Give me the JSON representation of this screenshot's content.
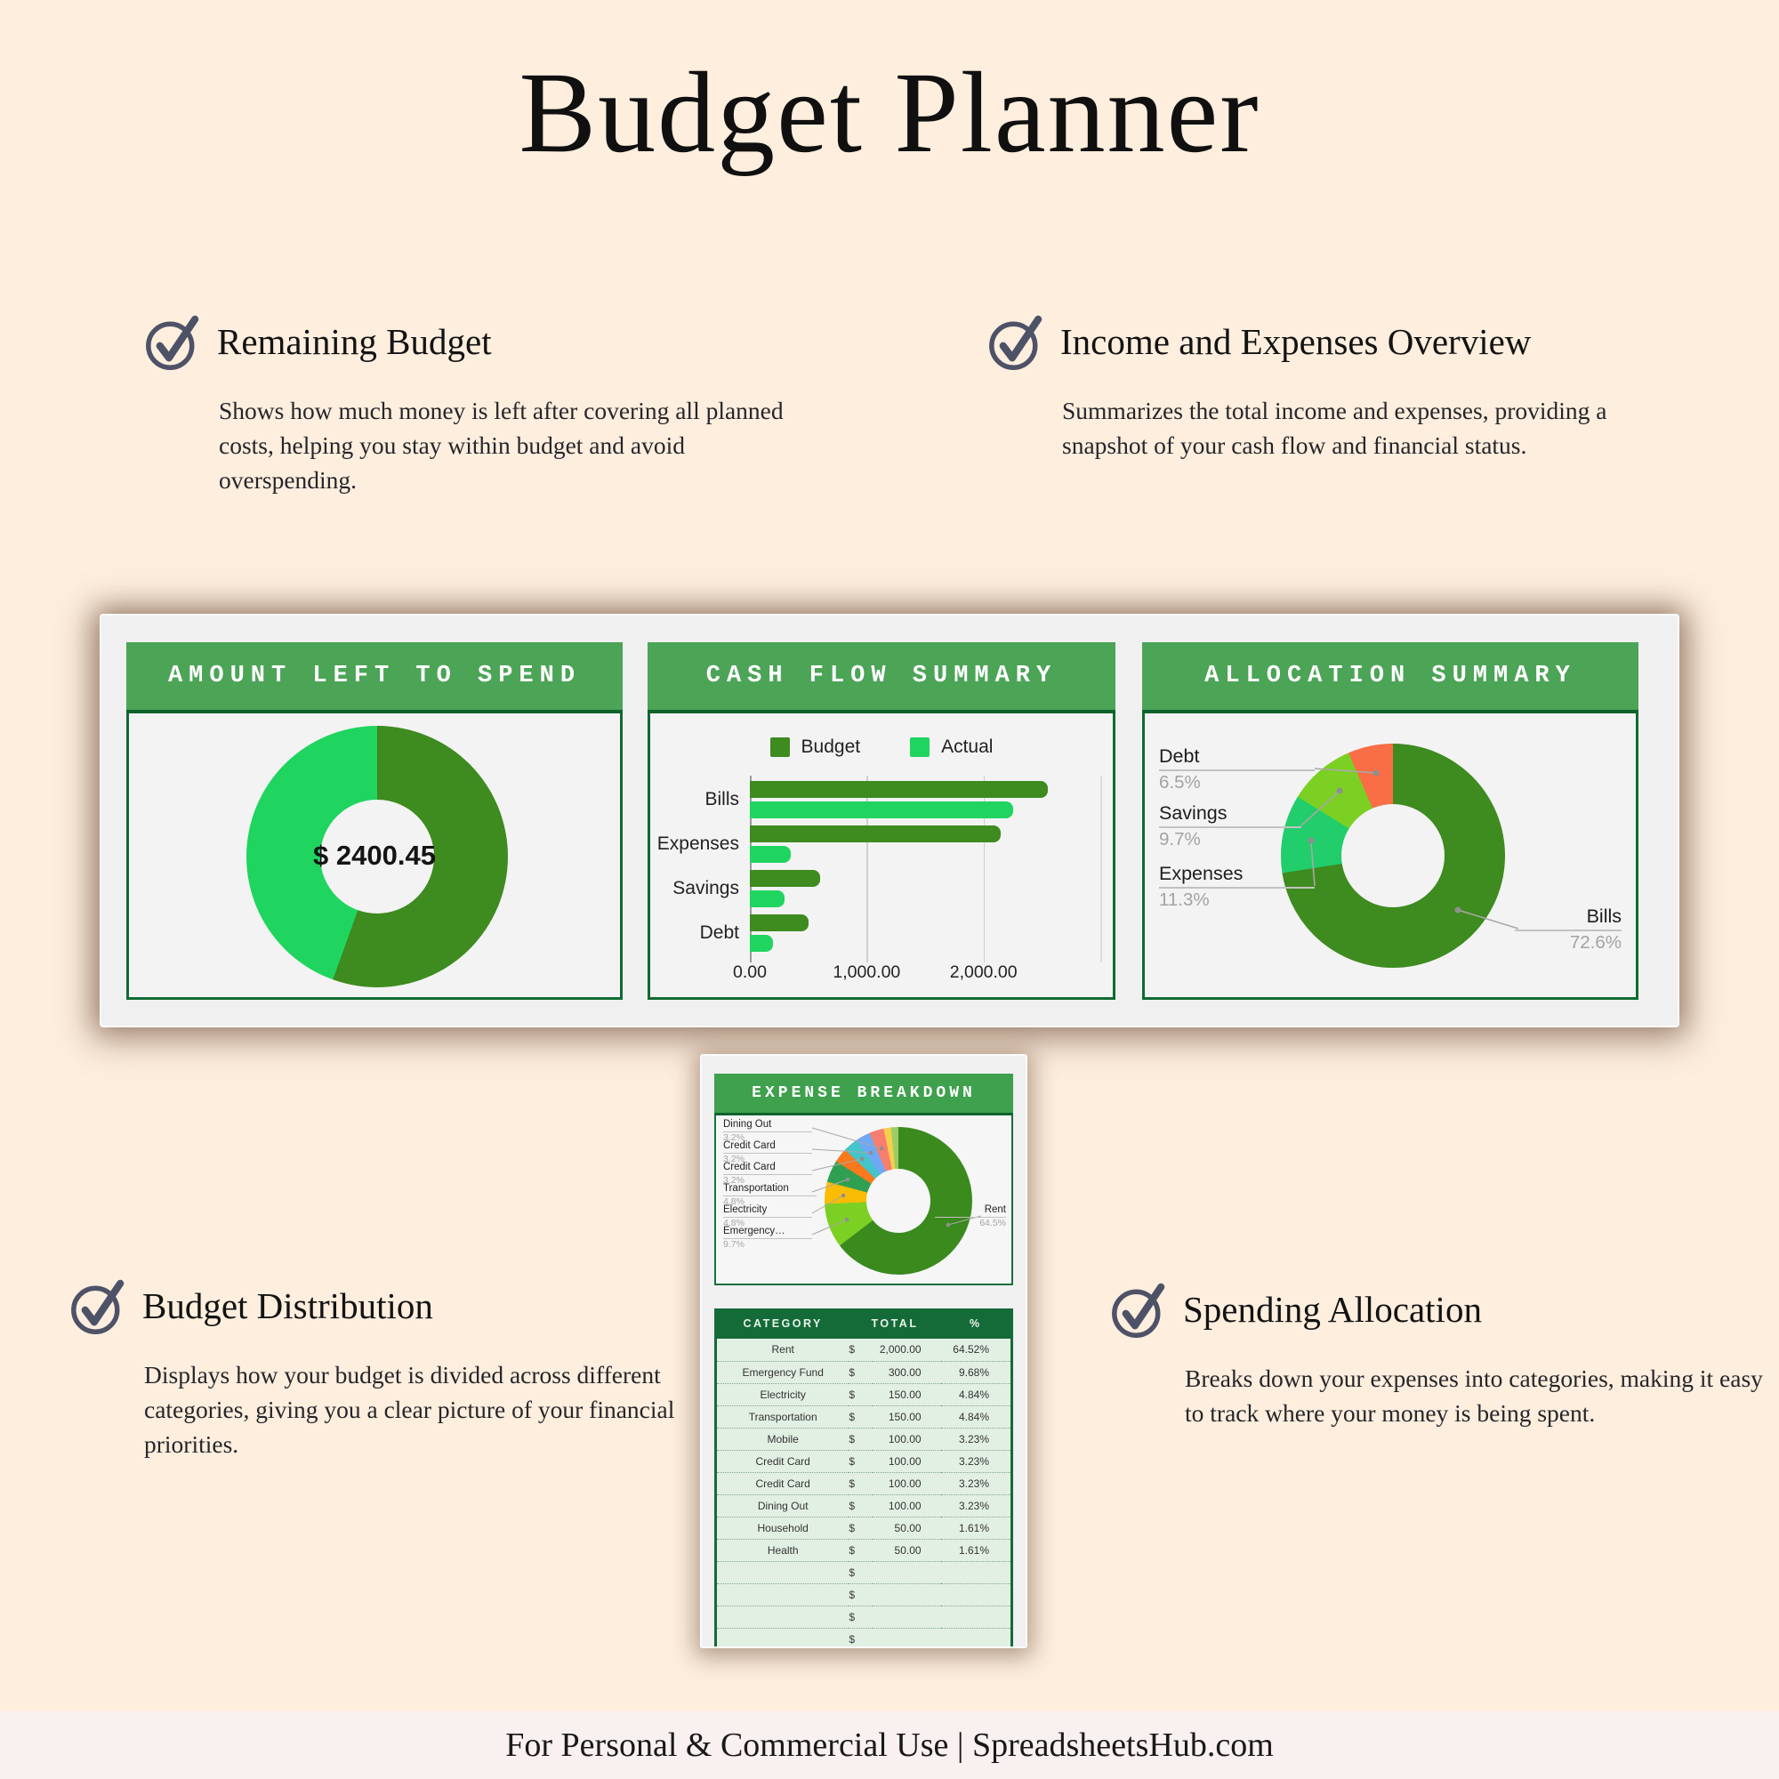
{
  "page": {
    "title": "Budget Planner",
    "footer_text": "For Personal & Commercial Use  |  SpreadsheetsHub.com"
  },
  "colors": {
    "bg": "#fdeede",
    "footer-bg": "#f8f1ef",
    "ink": "#161616",
    "icon": "#4e5267",
    "card-bg": "#f0f0f1",
    "chart-bg": "#f3f3f4",
    "panel-green": "#4ca457",
    "panel-green-dark": "#3fa04d",
    "green-border": "#0f6b31",
    "table-header-green": "#156b38",
    "table-row-green": "#e2efe3",
    "budget-green": "#3e8b1f",
    "actual-green": "#1fd55f"
  },
  "features": [
    {
      "title": "Remaining Budget",
      "description": "Shows how much money is left after covering all planned costs, helping you stay within budget and avoid overspending."
    },
    {
      "title": "Income and Expenses Overview",
      "description": "Summarizes the total income and expenses, providing a snapshot of your cash flow and financial status."
    },
    {
      "title": "Budget Distribution",
      "description": "Displays how your budget is divided across different categories, giving you a clear picture of your financial priorities."
    },
    {
      "title": "Spending Allocation",
      "description": "Breaks down your expenses into categories, making it easy to track where your money is being spent."
    }
  ],
  "chart_data": [
    {
      "type": "pie",
      "title": "AMOUNT LEFT TO SPEND",
      "center_label": "$ 2400.45",
      "slices": [
        {
          "label": "",
          "value": 55.5,
          "color": "#3e8b1f"
        },
        {
          "label": "",
          "value": 44.5,
          "color": "#1fd55f"
        }
      ]
    },
    {
      "type": "bar",
      "title": "CASH FLOW SUMMARY",
      "orientation": "horizontal",
      "categories": [
        "Bills",
        "Expenses",
        "Savings",
        "Debt"
      ],
      "series": [
        {
          "name": "Budget",
          "color": "#3e8b1f",
          "values": [
            2550,
            2150,
            600,
            500
          ]
        },
        {
          "name": "Actual",
          "color": "#1fd55f",
          "values": [
            2250,
            350,
            300,
            200
          ]
        }
      ],
      "x_ticks": [
        "0.00",
        "1,000.00",
        "2,000.00"
      ],
      "x_max": 3000,
      "grid": true,
      "legend_position": "top"
    },
    {
      "type": "pie",
      "title": "ALLOCATION SUMMARY",
      "slices": [
        {
          "label": "Bills",
          "value": 72.6,
          "pct_label": "72.6%",
          "color": "#3e8b1f"
        },
        {
          "label": "Expenses",
          "value": 11.3,
          "pct_label": "11.3%",
          "color": "#21ce6b"
        },
        {
          "label": "Savings",
          "value": 9.7,
          "pct_label": "9.7%",
          "color": "#7bd023"
        },
        {
          "label": "Debt",
          "value": 6.5,
          "pct_label": "6.5%",
          "color": "#f96e45"
        }
      ]
    },
    {
      "type": "pie",
      "title": "EXPENSE BREAKDOWN",
      "slices": [
        {
          "label": "Rent",
          "value": 64.5,
          "color": "#3a8a1e"
        },
        {
          "label": "Emergency Fund",
          "value": 9.7,
          "color": "#7bd023"
        },
        {
          "label": "Electricity",
          "value": 4.8,
          "color": "#fbbc05"
        },
        {
          "label": "Transportation",
          "value": 4.8,
          "color": "#2fa052"
        },
        {
          "label": "Mobile",
          "value": 3.2,
          "color": "#f9791d"
        },
        {
          "label": "Credit Card",
          "value": 3.2,
          "color": "#45c4c9"
        },
        {
          "label": "Credit Card",
          "value": 3.2,
          "color": "#6fa8f5"
        },
        {
          "label": "Dining Out",
          "value": 3.2,
          "color": "#f77e6e"
        },
        {
          "label": "Household",
          "value": 1.6,
          "color": "#f6ce4b"
        },
        {
          "label": "Health",
          "value": 1.6,
          "color": "#9ccc65"
        }
      ],
      "callouts": [
        {
          "text": "Dining Out",
          "pct": "3.2%"
        },
        {
          "text": "Credit Card",
          "pct": "3.2%"
        },
        {
          "text": "Credit Card",
          "pct": "3.2%"
        },
        {
          "text": "Transportation",
          "pct": "4.8%"
        },
        {
          "text": "Electricity",
          "pct": "4.8%"
        },
        {
          "text": "Emergency…",
          "pct": "9.7%"
        },
        {
          "text": "Rent",
          "pct": "64.5%"
        }
      ]
    },
    {
      "type": "table",
      "headers": [
        "CATEGORY",
        "TOTAL",
        "%"
      ],
      "currency": "$",
      "rows": [
        [
          "Rent",
          "2,000.00",
          "64.52%"
        ],
        [
          "Emergency Fund",
          "300.00",
          "9.68%"
        ],
        [
          "Electricity",
          "150.00",
          "4.84%"
        ],
        [
          "Transportation",
          "150.00",
          "4.84%"
        ],
        [
          "Mobile",
          "100.00",
          "3.23%"
        ],
        [
          "Credit Card",
          "100.00",
          "3.23%"
        ],
        [
          "Credit Card",
          "100.00",
          "3.23%"
        ],
        [
          "Dining Out",
          "100.00",
          "3.23%"
        ],
        [
          "Household",
          "50.00",
          "1.61%"
        ],
        [
          "Health",
          "50.00",
          "1.61%"
        ],
        [
          "",
          "",
          ""
        ],
        [
          "",
          "",
          ""
        ],
        [
          "",
          "",
          ""
        ],
        [
          "",
          "",
          ""
        ],
        [
          "",
          "",
          ""
        ]
      ]
    }
  ]
}
